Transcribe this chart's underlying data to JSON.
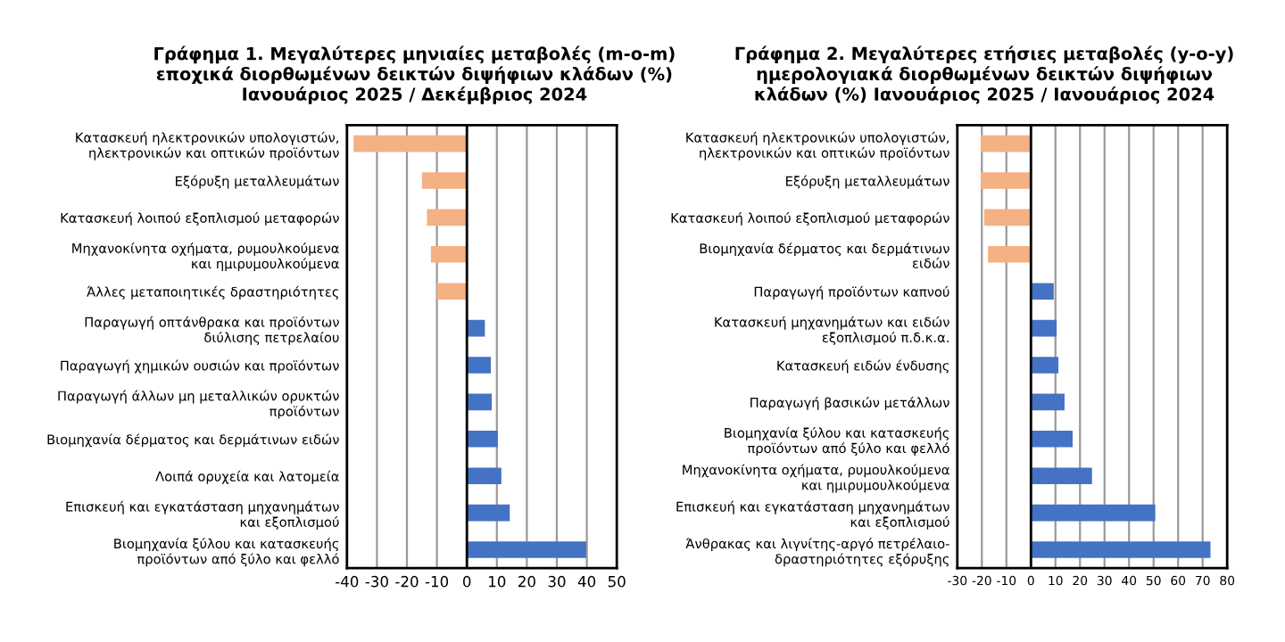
{
  "chart_data": [
    {
      "type": "bar",
      "orientation": "horizontal",
      "title": "Γράφημα 1. Μεγαλύτερες μηνιαίες μεταβολές (m-o-m)\nεποχικά διορθωμένων δεικτών διψήφιων κλάδων (%)\nΙανουάριος 2025 / Δεκέμβριος 2024",
      "categories": [
        "Κατασκευή ηλεκτρονικών υπολογιστών,\nηλεκτρονικών και οπτικών προϊόντων",
        "Εξόρυξη μεταλλευμάτων",
        "Κατασκευή λοιπού εξοπλισμού μεταφορών",
        "Μηχανοκίνητα οχήματα, ρυμουλκούμενα\nκαι ημιρυμουλκούμενα",
        "Άλλες μεταποιητικές δραστηριότητες",
        "Παραγωγή οπτάνθρακα και προϊόντων\nδιύλισης πετρελαίου",
        "Παραγωγή χημικών ουσιών και προϊόντων",
        "Παραγωγή άλλων μη μεταλλικών ορυκτών\nπροϊόντων",
        "Βιομηχανία δέρματος και δερμάτινων ειδών",
        "Λοιπά ορυχεία και λατομεία",
        "Επισκευή και εγκατάσταση μηχανημάτων\nκαι εξοπλισμού",
        "Βιομηχανία ξύλου και κατασκευής\nπροϊόντων από ξύλο και φελλό"
      ],
      "values": [
        -37.8,
        -15,
        -13.3,
        -12,
        -10,
        6,
        8,
        8.3,
        10.3,
        11.5,
        14.3,
        39.8
      ],
      "colors": [
        "#f4b183",
        "#f4b183",
        "#f4b183",
        "#f4b183",
        "#f4b183",
        "#4472c4",
        "#4472c4",
        "#4472c4",
        "#4472c4",
        "#4472c4",
        "#4472c4",
        "#4472c4"
      ],
      "xlim": [
        -40,
        50
      ],
      "xticks": [
        -40,
        -30,
        -20,
        -10,
        0,
        10,
        20,
        30,
        40,
        50
      ],
      "grid": "x"
    },
    {
      "type": "bar",
      "orientation": "horizontal",
      "title": "Γράφημα 2. Μεγαλύτερες ετήσιες μεταβολές (y-o-y)\nημερολογιακά διορθωμένων δεικτών διψήφιων\nκλάδων (%) Ιανουάριος 2025 / Ιανουάριος 2024",
      "categories": [
        "Κατασκευή ηλεκτρονικών υπολογιστών,\nηλεκτρονικών και οπτικών προϊόντων",
        "Εξόρυξη μεταλλευμάτων",
        "Κατασκευή λοιπού εξοπλισμού μεταφορών",
        "Βιομηχανία δέρματος και δερμάτινων\nειδών",
        "Παραγωγή προϊόντων καπνού",
        "Κατασκευή μηχανημάτων και ειδών\nεξοπλισμού π.δ.κ.α.",
        "Κατασκευή ειδών ένδυσης",
        "Παραγωγή βασικών μετάλλων",
        "Βιομηχανία ξύλου και κατασκευής\nπροϊόντων από ξύλο και φελλό",
        "Μηχανοκίνητα οχήματα, ρυμουλκούμενα\nκαι ημιρυμουλκούμενα",
        "Επισκευή και εγκατάσταση μηχανημάτων\nκαι εξοπλισμού",
        "Άνθρακας και λιγνίτης-αργό πετρέλαιο-\nδραστηριότητες εξόρυξης"
      ],
      "values": [
        -20.5,
        -20.5,
        -19,
        -17.5,
        9.3,
        10.5,
        11.2,
        13.7,
        17,
        24.9,
        50.7,
        73.2
      ],
      "colors": [
        "#f4b183",
        "#f4b183",
        "#f4b183",
        "#f4b183",
        "#4472c4",
        "#4472c4",
        "#4472c4",
        "#4472c4",
        "#4472c4",
        "#4472c4",
        "#4472c4",
        "#4472c4"
      ],
      "xlim": [
        -30,
        80
      ],
      "xticks": [
        -30,
        -20,
        -10,
        0,
        10,
        20,
        30,
        40,
        50,
        60,
        70,
        80
      ],
      "grid": "x"
    }
  ]
}
